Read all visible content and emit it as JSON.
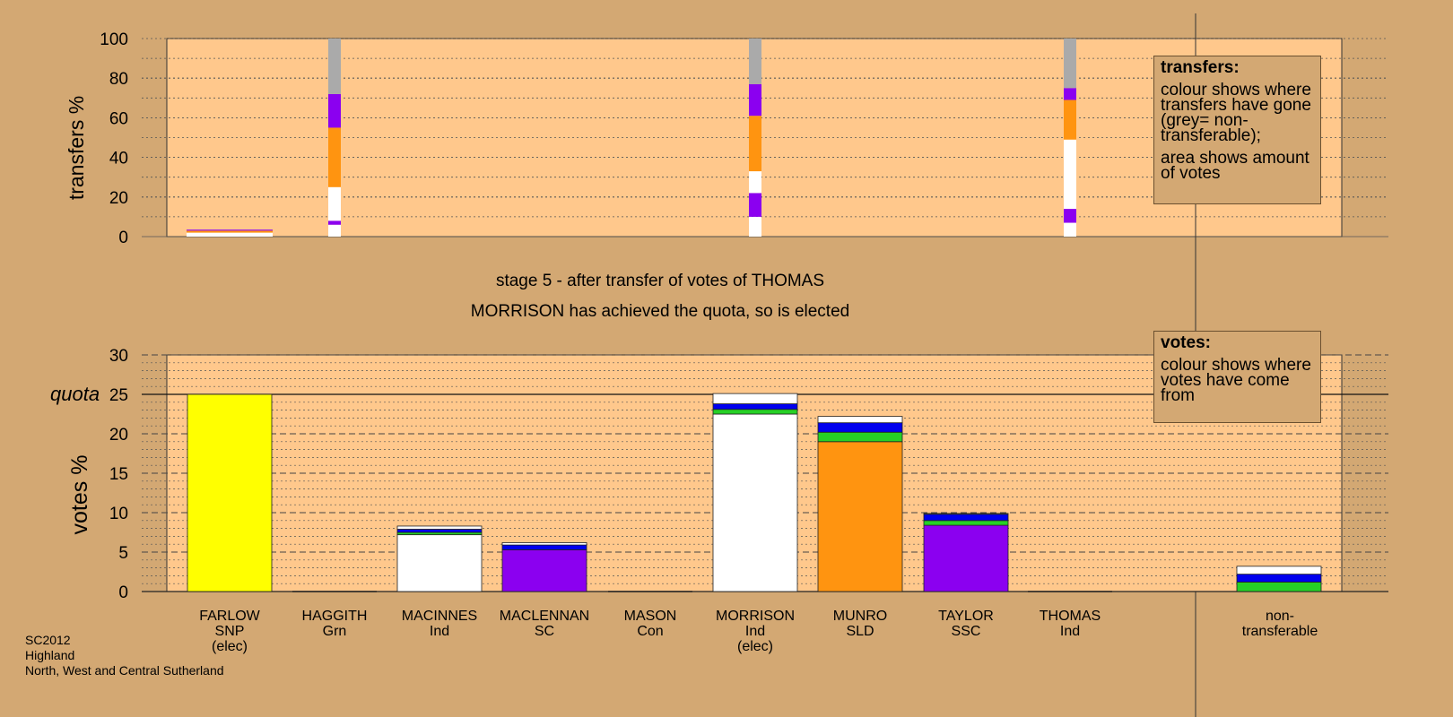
{
  "colors": {
    "background": "#d3a873",
    "panel": "#ffc88c",
    "SNP": "#ffff00",
    "Grn": "#26d026",
    "Ind": "#ffffff",
    "SC": "#8b00f0",
    "Con": "#0000ee",
    "SLD": "#ff9410",
    "SSC": "#8b00f0",
    "nontransferable": "#aaaaaa"
  },
  "captions": {
    "stage": "stage 5 - after transfer of votes of THOMAS",
    "elected": "MORRISON has achieved the quota, so is elected"
  },
  "legend_transfers": {
    "title": "transfers:",
    "line1": "colour shows where transfers have gone (grey= non-transferable);",
    "line2": "area shows amount of votes"
  },
  "legend_votes": {
    "title": "votes:",
    "line1": "colour shows where votes have come from"
  },
  "candidates": [
    {
      "name": "FARLOW",
      "party": "SNP",
      "note": "(elec)"
    },
    {
      "name": "HAGGITH",
      "party": "Grn",
      "note": ""
    },
    {
      "name": "MACINNES",
      "party": "Ind",
      "note": ""
    },
    {
      "name": "MACLENNAN",
      "party": "SC",
      "note": ""
    },
    {
      "name": "MASON",
      "party": "Con",
      "note": ""
    },
    {
      "name": "MORRISON",
      "party": "Ind",
      "note": "(elec)"
    },
    {
      "name": "MUNRO",
      "party": "SLD",
      "note": ""
    },
    {
      "name": "TAYLOR",
      "party": "SSC",
      "note": ""
    },
    {
      "name": "THOMAS",
      "party": "Ind",
      "note": ""
    }
  ],
  "nontransferable_label": {
    "line1": "non-",
    "line2": "transferable"
  },
  "footer": {
    "line1": "SC2012",
    "line2": "Highland",
    "line3": "North, West and Central Sutherland"
  },
  "chart_data": [
    {
      "type": "bar",
      "ylabel": "transfers %",
      "ylim": [
        0,
        100
      ],
      "yticks": [
        0,
        20,
        40,
        60,
        80,
        100
      ],
      "series": [
        {
          "x": "FARLOW",
          "amount": "large",
          "segments": [
            {
              "color": "#ffffff",
              "from": 0,
              "to": 2
            },
            {
              "color": "#ff9410",
              "from": 2,
              "to": 3
            },
            {
              "color": "#8b00f0",
              "from": 3,
              "to": 3.5
            }
          ]
        },
        {
          "x": "HAGGITH",
          "amount": "small",
          "segments": [
            {
              "color": "#ffffff",
              "from": 0,
              "to": 6
            },
            {
              "color": "#8b00f0",
              "from": 6,
              "to": 8
            },
            {
              "color": "#ffffff",
              "from": 8,
              "to": 25
            },
            {
              "color": "#ff9410",
              "from": 25,
              "to": 55
            },
            {
              "color": "#8b00f0",
              "from": 55,
              "to": 72
            },
            {
              "color": "#aaaaaa",
              "from": 72,
              "to": 100
            }
          ]
        },
        {
          "x": "MORRISON",
          "amount": "small",
          "segments": [
            {
              "color": "#ffffff",
              "from": 0,
              "to": 10
            },
            {
              "color": "#8b00f0",
              "from": 10,
              "to": 22
            },
            {
              "color": "#ffffff",
              "from": 22,
              "to": 33
            },
            {
              "color": "#ff9410",
              "from": 33,
              "to": 61
            },
            {
              "color": "#8b00f0",
              "from": 61,
              "to": 77
            },
            {
              "color": "#aaaaaa",
              "from": 77,
              "to": 100
            }
          ]
        },
        {
          "x": "THOMAS",
          "amount": "small",
          "segments": [
            {
              "color": "#ffffff",
              "from": 0,
              "to": 7
            },
            {
              "color": "#8b00f0",
              "from": 7,
              "to": 14
            },
            {
              "color": "#ffffff",
              "from": 14,
              "to": 49
            },
            {
              "color": "#ff9410",
              "from": 49,
              "to": 69
            },
            {
              "color": "#8b00f0",
              "from": 69,
              "to": 75
            },
            {
              "color": "#aaaaaa",
              "from": 75,
              "to": 100
            }
          ]
        }
      ]
    },
    {
      "type": "bar",
      "ylabel": "votes %",
      "ylim": [
        0,
        30
      ],
      "yticks": [
        0,
        5,
        10,
        15,
        20,
        25,
        30
      ],
      "quota": 25,
      "quota_label": "quota",
      "bars": [
        {
          "candidate": "FARLOW",
          "segments": [
            {
              "color": "#ffff00",
              "value": 25.0
            }
          ]
        },
        {
          "candidate": "HAGGITH",
          "segments": []
        },
        {
          "candidate": "MACINNES",
          "segments": [
            {
              "color": "#ffffff",
              "value": 7.2
            },
            {
              "color": "#26d026",
              "value": 0.3
            },
            {
              "color": "#0000ee",
              "value": 0.4
            },
            {
              "color": "#ffffff",
              "value": 0.4
            }
          ]
        },
        {
          "candidate": "MACLENNAN",
          "segments": [
            {
              "color": "#8b00f0",
              "value": 5.3
            },
            {
              "color": "#0000ee",
              "value": 0.6
            },
            {
              "color": "#ffffff",
              "value": 0.3
            }
          ]
        },
        {
          "candidate": "MASON",
          "segments": []
        },
        {
          "candidate": "MORRISON",
          "segments": [
            {
              "color": "#ffffff",
              "value": 22.5
            },
            {
              "color": "#26d026",
              "value": 0.6
            },
            {
              "color": "#0000ee",
              "value": 0.7
            },
            {
              "color": "#ffffff",
              "value": 1.3
            }
          ]
        },
        {
          "candidate": "MUNRO",
          "segments": [
            {
              "color": "#ff9410",
              "value": 19.0
            },
            {
              "color": "#26d026",
              "value": 1.2
            },
            {
              "color": "#0000ee",
              "value": 1.2
            },
            {
              "color": "#ffffff",
              "value": 0.8
            }
          ]
        },
        {
          "candidate": "TAYLOR",
          "segments": [
            {
              "color": "#8b00f0",
              "value": 8.4
            },
            {
              "color": "#26d026",
              "value": 0.6
            },
            {
              "color": "#0000ee",
              "value": 0.8
            },
            {
              "color": "#ffffff",
              "value": 0.1
            }
          ]
        },
        {
          "candidate": "THOMAS",
          "segments": []
        },
        {
          "candidate": "non-transferable",
          "segments": [
            {
              "color": "#26d026",
              "value": 1.2
            },
            {
              "color": "#0000ee",
              "value": 1.0
            },
            {
              "color": "#ffffff",
              "value": 1.0
            }
          ]
        }
      ]
    }
  ]
}
